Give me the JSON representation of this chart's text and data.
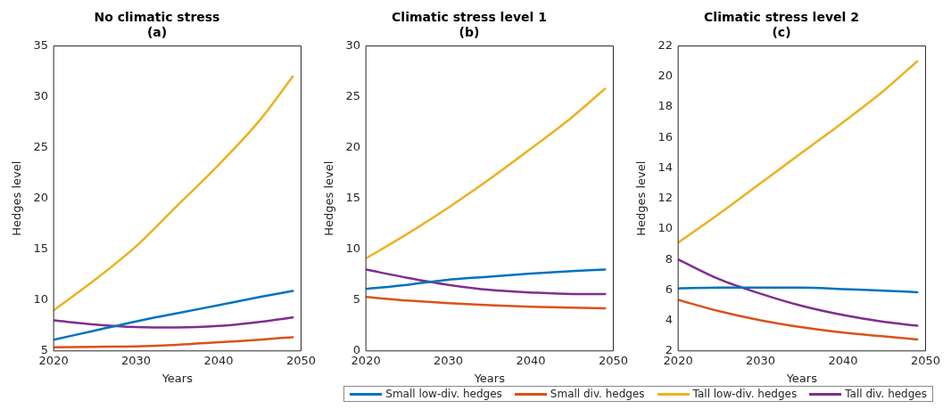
{
  "chart_data": [
    {
      "type": "line",
      "title": "No climatic stress\n(a)",
      "xlabel": "Years",
      "ylabel": "Hedges level",
      "x": [
        2020,
        2025,
        2030,
        2035,
        2040,
        2045,
        2049
      ],
      "xlim": [
        2020,
        2050
      ],
      "xticks": [
        2020,
        2030,
        2040,
        2050
      ],
      "ylim": [
        5,
        35
      ],
      "yticks": [
        5,
        10,
        15,
        20,
        25,
        30,
        35
      ],
      "grid": false,
      "marker": "none",
      "line_style": "solid",
      "series": [
        {
          "color": "#0072bd",
          "values": [
            6.1,
            7.0,
            7.9,
            8.7,
            9.5,
            10.3,
            10.9
          ]
        },
        {
          "color": "#d95319",
          "values": [
            5.35,
            5.4,
            5.45,
            5.6,
            5.85,
            6.1,
            6.35
          ]
        },
        {
          "color": "#edb120",
          "values": [
            9.0,
            12.0,
            15.3,
            19.3,
            23.3,
            27.7,
            32.0
          ]
        },
        {
          "color": "#7e2f8e",
          "values": [
            8.0,
            7.6,
            7.35,
            7.3,
            7.45,
            7.85,
            8.3
          ]
        }
      ]
    },
    {
      "type": "line",
      "title": "Climatic stress level 1\n(b)",
      "xlabel": "Years",
      "ylabel": "Hedges level",
      "x": [
        2020,
        2025,
        2030,
        2035,
        2040,
        2045,
        2049
      ],
      "xlim": [
        2020,
        2050
      ],
      "xticks": [
        2020,
        2030,
        2040,
        2050
      ],
      "ylim": [
        0,
        30
      ],
      "yticks": [
        0,
        5,
        10,
        15,
        20,
        25,
        30
      ],
      "grid": false,
      "marker": "none",
      "line_style": "solid",
      "legend": "bottom right",
      "series": [
        {
          "name": "Small low-div. hedges",
          "color": "#0072bd",
          "values": [
            6.1,
            6.5,
            7.0,
            7.3,
            7.6,
            7.85,
            8.0
          ]
        },
        {
          "name": "Small div. hedges",
          "color": "#d95319",
          "values": [
            5.3,
            4.95,
            4.7,
            4.5,
            4.35,
            4.25,
            4.2
          ]
        },
        {
          "name": "Tall low-div. hedges",
          "color": "#edb120",
          "values": [
            9.1,
            11.5,
            14.1,
            16.9,
            19.9,
            23.0,
            25.8
          ]
        },
        {
          "name": "Tall div. hedges",
          "color": "#7e2f8e",
          "values": [
            8.0,
            7.2,
            6.5,
            6.0,
            5.75,
            5.6,
            5.6
          ]
        }
      ]
    },
    {
      "type": "line",
      "title": "Climatic stress level 2\n(c)",
      "xlabel": "Years",
      "ylabel": "Hedges level",
      "x": [
        2020,
        2025,
        2030,
        2035,
        2040,
        2045,
        2049
      ],
      "xlim": [
        2020,
        2050
      ],
      "xticks": [
        2020,
        2030,
        2040,
        2050
      ],
      "ylim": [
        2,
        22
      ],
      "yticks": [
        2,
        4,
        6,
        8,
        10,
        12,
        14,
        16,
        18,
        20,
        22
      ],
      "grid": false,
      "marker": "none",
      "line_style": "solid",
      "series": [
        {
          "color": "#0072bd",
          "values": [
            6.1,
            6.15,
            6.15,
            6.15,
            6.05,
            5.95,
            5.85
          ]
        },
        {
          "color": "#d95319",
          "values": [
            5.35,
            4.6,
            4.0,
            3.55,
            3.2,
            2.95,
            2.75
          ]
        },
        {
          "color": "#edb120",
          "values": [
            9.1,
            11.0,
            13.0,
            15.0,
            17.0,
            19.1,
            21.0
          ]
        },
        {
          "color": "#7e2f8e",
          "values": [
            8.0,
            6.7,
            5.75,
            4.95,
            4.35,
            3.9,
            3.65
          ]
        }
      ]
    }
  ]
}
